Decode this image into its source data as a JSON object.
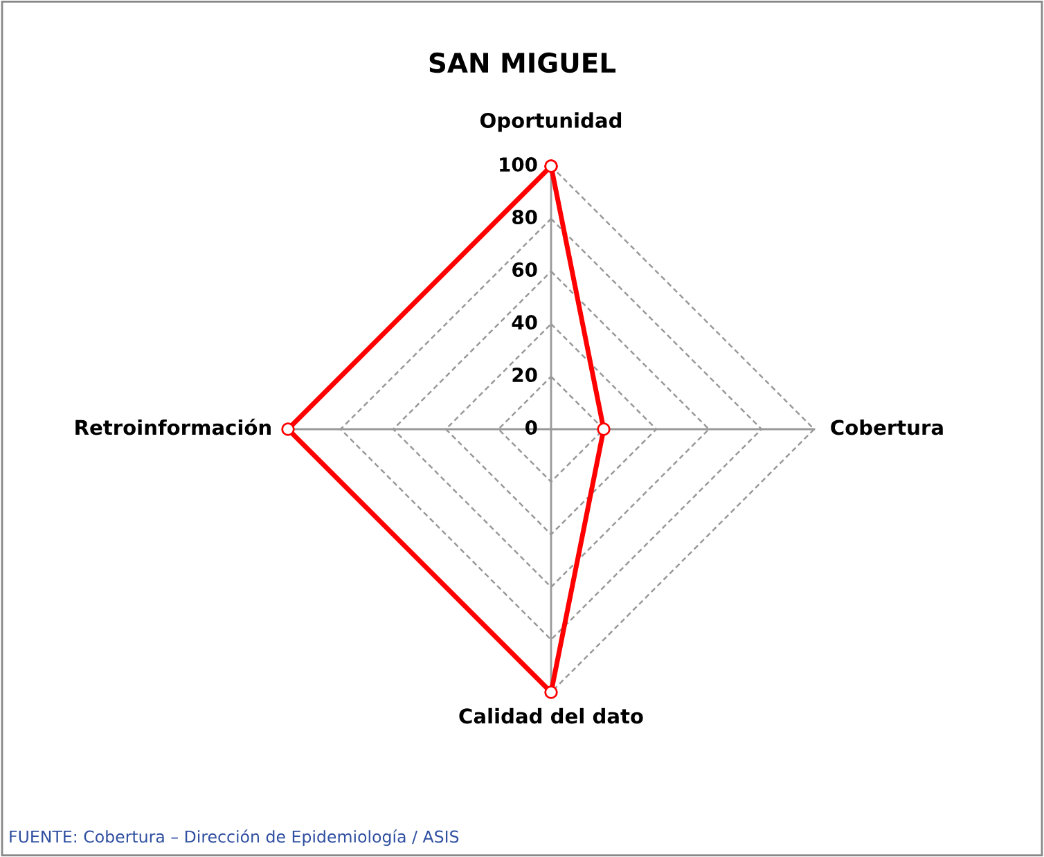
{
  "chart_data": {
    "type": "radar",
    "title": "SAN MIGUEL",
    "categories": [
      "Oportunidad",
      "Cobertura",
      "Calidad del dato",
      "Retroinformación"
    ],
    "series": [
      {
        "color": "#ff0000",
        "values": [
          100,
          20,
          100,
          100
        ]
      }
    ],
    "ylim": [
      0,
      100
    ],
    "yticks": [
      0,
      20,
      40,
      60,
      80,
      100
    ],
    "grid": true,
    "marker": "circle",
    "line_style": "solid",
    "annotations": [
      "FUENTE: Cobertura – Dirección de Epidemiología / ASIS"
    ]
  }
}
